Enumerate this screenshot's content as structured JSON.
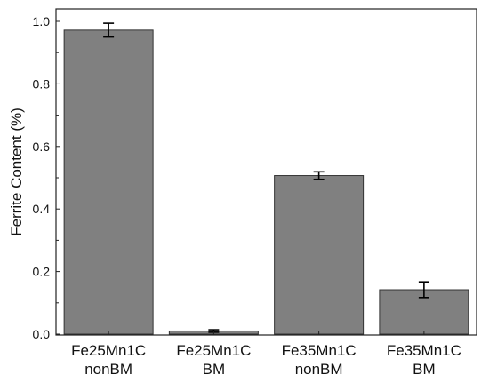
{
  "chart_data": {
    "type": "bar",
    "categories": [
      [
        "Fe25Mn1C",
        "nonBM"
      ],
      [
        "Fe25Mn1C",
        "BM"
      ],
      [
        "Fe35Mn1C",
        "nonBM"
      ],
      [
        "Fe35Mn1C",
        "BM"
      ]
    ],
    "values": [
      0.972,
      0.01,
      0.507,
      0.142
    ],
    "errors": [
      0.022,
      0.004,
      0.012,
      0.025
    ],
    "title": "",
    "xlabel": "",
    "ylabel": "Ferrite Content (%)",
    "ylim": [
      0,
      1.0
    ],
    "yticks": [
      "0.0",
      "0.2",
      "0.4",
      "0.6",
      "0.8",
      "1.0"
    ],
    "grid": false,
    "bar_color": "#808080",
    "bar_edge_color": "#333333"
  }
}
